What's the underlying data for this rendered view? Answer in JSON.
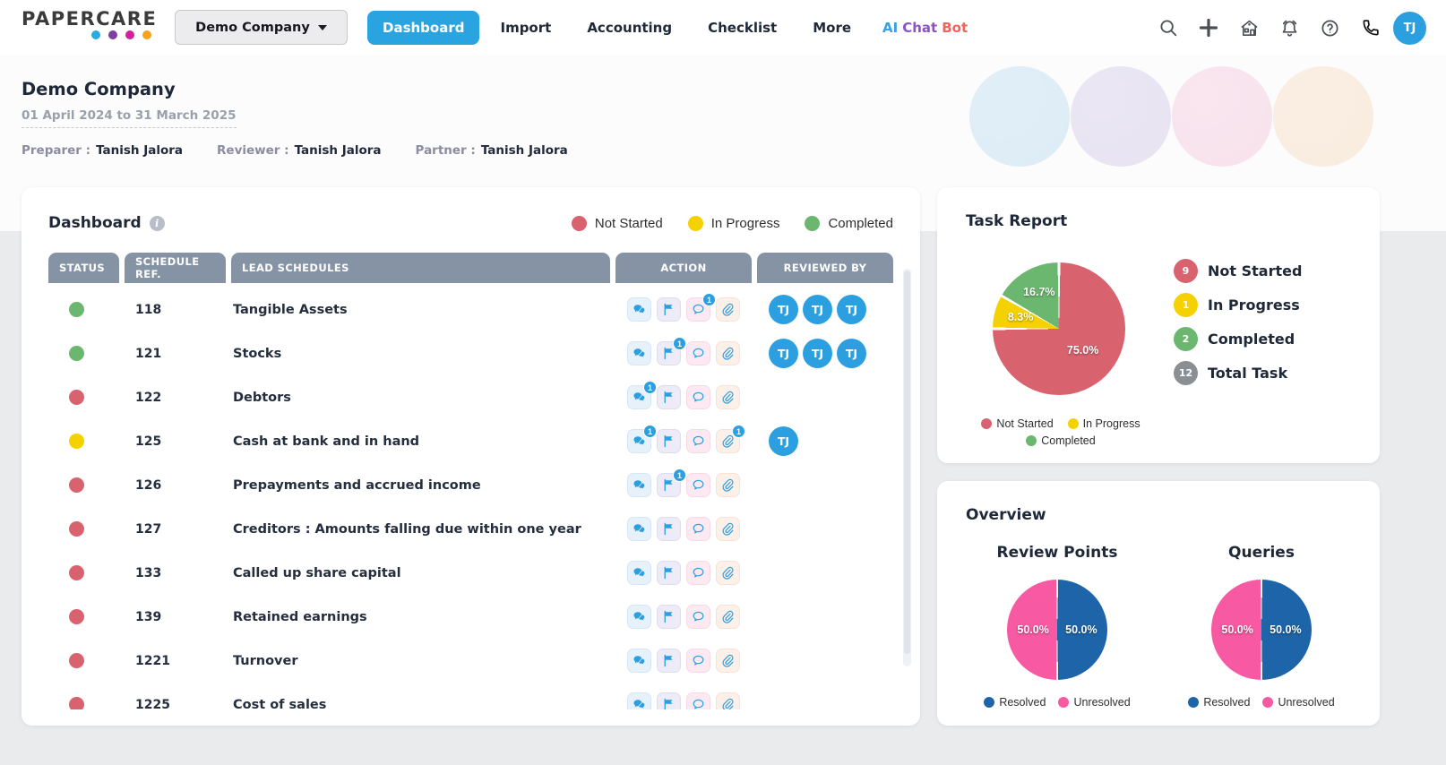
{
  "brand": {
    "name": "PAPERCARE",
    "dot_colors": [
      "#29abe2",
      "#7b3fa4",
      "#d2219b",
      "#f7a21c"
    ]
  },
  "nav": {
    "company_selector": "Demo Company",
    "tabs": [
      {
        "label": "Dashboard",
        "active": true
      },
      {
        "label": "Import",
        "active": false
      },
      {
        "label": "Accounting",
        "active": false
      },
      {
        "label": "Checklist",
        "active": false
      },
      {
        "label": "More",
        "active": false
      }
    ],
    "ai_chat_bot": {
      "words": [
        {
          "text": "AI",
          "color": "#35a3e6"
        },
        {
          "text": "Chat",
          "color": "#8d53c6"
        },
        {
          "text": "Bot",
          "color": "#f0645c"
        }
      ]
    },
    "icon_names": [
      "search-icon",
      "add-icon",
      "home-icon",
      "notifications-icon",
      "help-icon",
      "phone-icon"
    ],
    "avatar": "TJ"
  },
  "header": {
    "company": "Demo Company",
    "period": "01 April 2024 to 31 March 2025",
    "people": [
      {
        "role": "Preparer :",
        "name": "Tanish Jalora"
      },
      {
        "role": "Reviewer :",
        "name": "Tanish Jalora"
      },
      {
        "role": "Partner :",
        "name": "Tanish Jalora"
      }
    ],
    "decor_circle_colors": [
      "#dcecf6",
      "#e7e3f2",
      "#f8e2ec",
      "#f9ecdf"
    ]
  },
  "dashboard": {
    "title": "Dashboard",
    "legend": [
      {
        "label": "Not Started",
        "color": "#d9626f"
      },
      {
        "label": "In Progress",
        "color": "#f5d100"
      },
      {
        "label": "Completed",
        "color": "#6cb76f"
      }
    ],
    "status_colors": {
      "not_started": "#d9626f",
      "in_progress": "#f5d100",
      "completed": "#6cb76f"
    },
    "columns": [
      "STATUS",
      "SCHEDULE REF.",
      "LEAD SCHEDULES",
      "ACTION",
      "REVIEWED BY"
    ],
    "action_icons": [
      {
        "name": "chat-icon",
        "bg": "#e7f1fa",
        "border": "#d4e7f5"
      },
      {
        "name": "flag-icon",
        "bg": "#edebf8",
        "border": "#dfdcf0"
      },
      {
        "name": "comment-icon",
        "bg": "#fde9f1",
        "border": "#f6d9e6"
      },
      {
        "name": "attachment-icon",
        "bg": "#fdf0e9",
        "border": "#f6e2d6"
      }
    ],
    "rows": [
      {
        "status": "completed",
        "ref": "118",
        "name": "Tangible Assets",
        "badges": {
          "comment-icon": 1
        },
        "reviewers": [
          "TJ",
          "TJ",
          "TJ"
        ]
      },
      {
        "status": "completed",
        "ref": "121",
        "name": "Stocks",
        "badges": {
          "flag-icon": 1
        },
        "reviewers": [
          "TJ",
          "TJ",
          "TJ"
        ]
      },
      {
        "status": "not_started",
        "ref": "122",
        "name": "Debtors",
        "badges": {
          "chat-icon": 1
        },
        "reviewers": []
      },
      {
        "status": "in_progress",
        "ref": "125",
        "name": "Cash at bank and in hand",
        "badges": {
          "chat-icon": 1,
          "attachment-icon": 1
        },
        "reviewers": [
          "TJ"
        ]
      },
      {
        "status": "not_started",
        "ref": "126",
        "name": "Prepayments and accrued income",
        "badges": {
          "flag-icon": 1
        },
        "reviewers": []
      },
      {
        "status": "not_started",
        "ref": "127",
        "name": "Creditors : Amounts falling due within one year",
        "badges": {},
        "reviewers": []
      },
      {
        "status": "not_started",
        "ref": "133",
        "name": "Called up share capital",
        "badges": {},
        "reviewers": []
      },
      {
        "status": "not_started",
        "ref": "139",
        "name": "Retained earnings",
        "badges": {},
        "reviewers": []
      },
      {
        "status": "not_started",
        "ref": "1221",
        "name": "Turnover",
        "badges": {},
        "reviewers": []
      },
      {
        "status": "not_started",
        "ref": "1225",
        "name": "Cost of sales",
        "badges": {},
        "reviewers": []
      }
    ]
  },
  "task_report": {
    "title": "Task Report",
    "stats": [
      {
        "count": "9",
        "label": "Not Started",
        "color": "#d9626f"
      },
      {
        "count": "1",
        "label": "In Progress",
        "color": "#f5d100"
      },
      {
        "count": "2",
        "label": "Completed",
        "color": "#6cb76f"
      },
      {
        "count": "12",
        "label": "Total Task",
        "color": "#8a8f93"
      }
    ]
  },
  "overview": {
    "title": "Overview"
  },
  "chart_data": [
    {
      "type": "pie",
      "title": "Task Report",
      "labels": [
        "Not Started",
        "In Progress",
        "Completed"
      ],
      "values": [
        75.0,
        8.3,
        16.7
      ],
      "counts": [
        9,
        1,
        2
      ],
      "total_tasks": 12,
      "colors": [
        "#d9626f",
        "#f5d100",
        "#6cb76f"
      ],
      "legend_position": "bottom"
    },
    {
      "type": "pie",
      "title": "Review Points",
      "labels": [
        "Resolved",
        "Unresolved"
      ],
      "values": [
        50.0,
        50.0
      ],
      "colors": [
        "#1d64a8",
        "#f859a3"
      ],
      "legend_position": "bottom"
    },
    {
      "type": "pie",
      "title": "Queries",
      "labels": [
        "Resolved",
        "Unresolved"
      ],
      "values": [
        50.0,
        50.0
      ],
      "colors": [
        "#1d64a8",
        "#f859a3"
      ],
      "legend_position": "bottom"
    }
  ]
}
